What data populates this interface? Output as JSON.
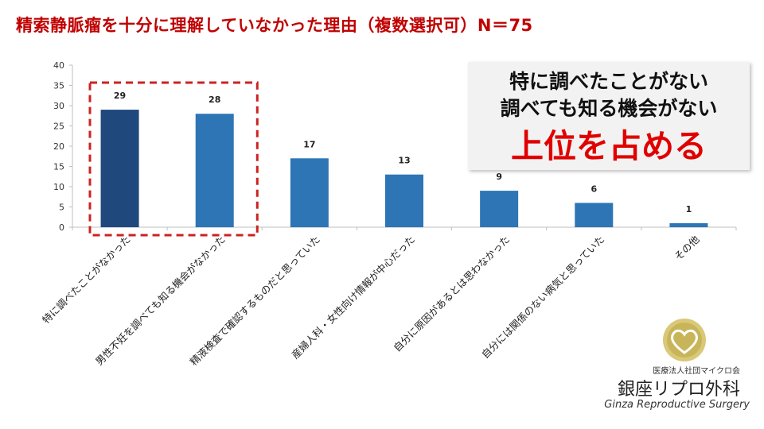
{
  "title": "精索静脈瘤を十分に理解していなかった理由（複数選択可）N＝75",
  "chart_data": {
    "type": "bar",
    "categories": [
      "特に調べたことがなかった",
      "男性不妊を調べても知る機会がなかった",
      "精液検査で確認するものだと思っていた",
      "産婦人科・女性向け情報が中心だった",
      "自分に原因があるとは思わなかった",
      "自分には関係のない病気と思っていた",
      "その他"
    ],
    "values": [
      29,
      28,
      17,
      13,
      9,
      6,
      1
    ],
    "ylim": [
      0,
      40
    ],
    "yticks": [
      0,
      5,
      10,
      15,
      20,
      25,
      30,
      35,
      40
    ],
    "grid": false,
    "highlight": [
      0,
      1
    ],
    "colors": {
      "bar": "#2e75b6",
      "bar_highlight": "#1f497d",
      "highlight_box": "#cc2222"
    }
  },
  "callout": {
    "line1": "特に調べたことがない",
    "line2": "調べても知る機会がない",
    "emphasis": "上位を占める"
  },
  "logo": {
    "org": "医療法人社団マイクロ会",
    "name_jp": "銀座リプロ外科",
    "name_en": "Ginza Reproductive Surgery"
  }
}
